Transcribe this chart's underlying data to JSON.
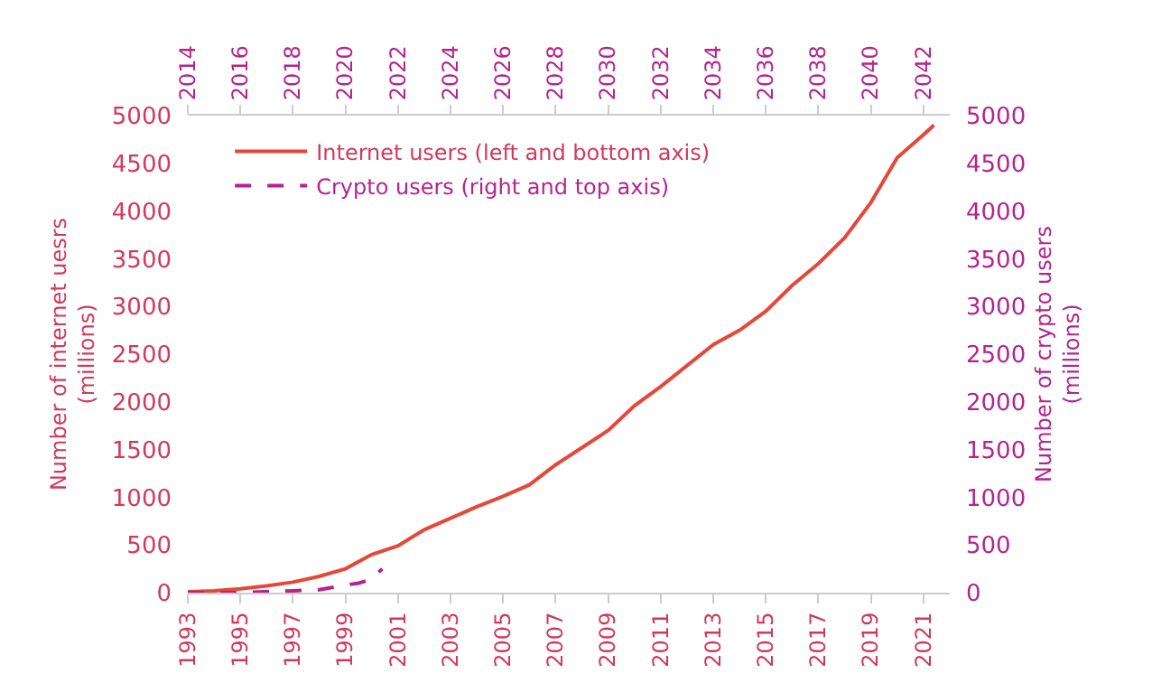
{
  "chart_data": {
    "type": "line",
    "ylabel": "Number of internet uesrs (millions)",
    "y2label": "Number of crypto users (millions)",
    "series": [
      {
        "name": "Internet users (left and bottom axis)",
        "color": "#e5483a",
        "line_style": "solid",
        "x": [
          1993,
          1994,
          1995,
          1996,
          1997,
          1998,
          1999,
          2000,
          2001,
          2002,
          2003,
          2004,
          2005,
          2006,
          2007,
          2008,
          2009,
          2010,
          2011,
          2012,
          2013,
          2014,
          2015,
          2016,
          2017,
          2018,
          2019,
          2020,
          2021,
          2021.4
        ],
        "values": [
          10,
          20,
          40,
          70,
          110,
          170,
          250,
          400,
          490,
          660,
          780,
          900,
          1010,
          1130,
          1340,
          1520,
          1700,
          1960,
          2160,
          2380,
          2600,
          2750,
          2950,
          3220,
          3450,
          3720,
          4090,
          4560,
          4800,
          4900
        ]
      },
      {
        "name": "Crypto users (right and top axis)",
        "color": "#b5238f",
        "line_style": "dashed",
        "axis": "x2",
        "x": [
          2014,
          2016,
          2018,
          2019,
          2020,
          2020.5,
          2021,
          2021.4
        ],
        "values": [
          0,
          0,
          20,
          30,
          80,
          100,
          140,
          250
        ]
      }
    ],
    "xlim": [
      1993,
      2022
    ],
    "xticks": [
      1993,
      1995,
      1997,
      1999,
      2001,
      2003,
      2005,
      2007,
      2009,
      2011,
      2013,
      2015,
      2017,
      2019,
      2021
    ],
    "x2lim": [
      2014,
      2043
    ],
    "x2ticks": [
      2014,
      2016,
      2018,
      2020,
      2022,
      2024,
      2026,
      2028,
      2030,
      2032,
      2034,
      2036,
      2038,
      2040,
      2042
    ],
    "ylim": [
      0,
      5000
    ],
    "yticks": [
      0,
      500,
      1000,
      1500,
      2000,
      2500,
      3000,
      3500,
      4000,
      4500,
      5000
    ],
    "y2lim": [
      0,
      5000
    ],
    "y2ticks": [
      0,
      500,
      1000,
      1500,
      2000,
      2500,
      3000,
      3500,
      4000,
      4500,
      5000
    ],
    "grid": false,
    "legend": "top left",
    "marker": "none"
  }
}
